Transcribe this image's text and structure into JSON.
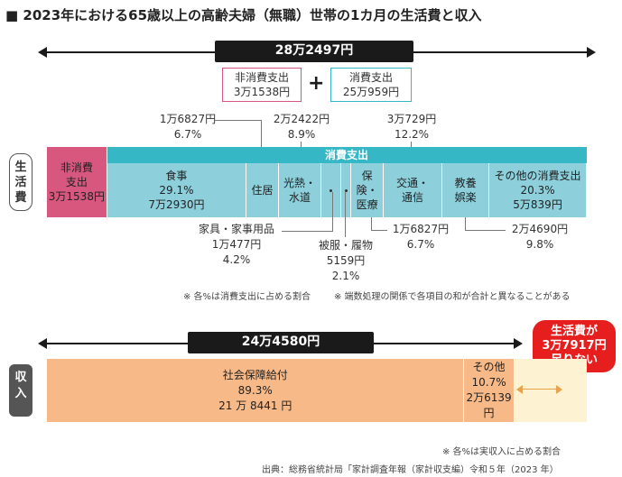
{
  "title": "■ 2023年における65歳以上の高齢夫婦（無職）世帯の1カ月の生活費と収入",
  "expense_total": "28万2497円",
  "non_consumption_box": {
    "line1": "非消費支出",
    "line2": "3万1538円"
  },
  "plus_sign": "+",
  "consumption_box": {
    "line1": "消費支出",
    "line2": "25万959円"
  },
  "side_label_expense": "生活費",
  "side_label_income": "収入",
  "consumption_header": "消費支出",
  "non_consumption_segment": {
    "line1": "非消費",
    "line2": "支出",
    "line3": "3万1538円"
  },
  "colors": {
    "pink": "#d7577f",
    "teal_header": "#36b7c6",
    "teal": "#8dd0dc",
    "salmon": "#f7b987",
    "cream": "#fdf3d2",
    "red": "#e61e1e",
    "dark": "#1a1a1a"
  },
  "chart_data": [
    {
      "type": "bar",
      "title": "生活費",
      "total_yen": 282497,
      "non_consumption_yen": 31538,
      "consumption_yen": 250959,
      "categories": [
        "食事",
        "住居",
        "光熱・水道",
        "家具・家事用品",
        "被服・履物",
        "保険・医療",
        "交通・通信",
        "教養娯楽",
        "その他の消費支出"
      ],
      "values": [
        72930,
        16827,
        22422,
        10477,
        5159,
        16827,
        30729,
        24690,
        50839
      ],
      "percent_of_consumption": [
        29.1,
        6.7,
        8.9,
        4.2,
        2.1,
        6.7,
        12.2,
        9.8,
        20.3
      ],
      "segment_labels": {
        "food": {
          "name": "食事",
          "pct": "29.1%",
          "amt": "7万2930円"
        },
        "housing": {
          "name": "住居"
        },
        "utilities": {
          "line1": "光熱・",
          "line2": "水道"
        },
        "medical": {
          "line1": "保険・",
          "line2": "医療"
        },
        "transport": {
          "line1": "交通・",
          "line2": "通信"
        },
        "culture": {
          "line1": "教養",
          "line2": "娯楽"
        },
        "other": {
          "name": "その他の消費支出",
          "pct": "20.3%",
          "amt": "5万839円"
        }
      },
      "annotations": {
        "housing": {
          "amt": "1万6827円",
          "pct": "6.7%"
        },
        "utilities": {
          "amt": "2万2422円",
          "pct": "8.9%"
        },
        "transport": {
          "amt": "3万729円",
          "pct": "12.2%"
        },
        "furniture": {
          "name": "家具・家事用品",
          "amt": "1万477円",
          "pct": "4.2%"
        },
        "clothing": {
          "name": "被服・履物",
          "amt": "5159円",
          "pct": "2.1%"
        },
        "medical": {
          "amt": "1万6827円",
          "pct": "6.7%"
        },
        "culture": {
          "amt": "2万4690円",
          "pct": "9.8%"
        }
      },
      "notes": [
        "※ 各%は消費支出に占める割合",
        "※ 端数処理の関係で各項目の和が合計と異なることがある"
      ]
    },
    {
      "type": "bar",
      "title": "収入",
      "total_yen": 244580,
      "total_label": "24万4580円",
      "categories": [
        "社会保障給付",
        "その他"
      ],
      "values": [
        218441,
        26139
      ],
      "percent": [
        89.3,
        10.7
      ],
      "segment_labels": {
        "social": {
          "name": "社会保障給付",
          "pct": "89.3%",
          "amt": "21 万 8441 円"
        },
        "other": {
          "name": "その他",
          "pct": "10.7%",
          "amt": "2万6139 円"
        }
      },
      "shortfall": {
        "value_yen": 37917,
        "line1": "生活費が",
        "line2": "3万7917円",
        "line3": "足りない"
      },
      "note": "※ 各%は実収入に占める割合"
    }
  ],
  "source": "出典：総務省統計局「家計調査年報（家計収支編）令和５年（2023 年）"
}
